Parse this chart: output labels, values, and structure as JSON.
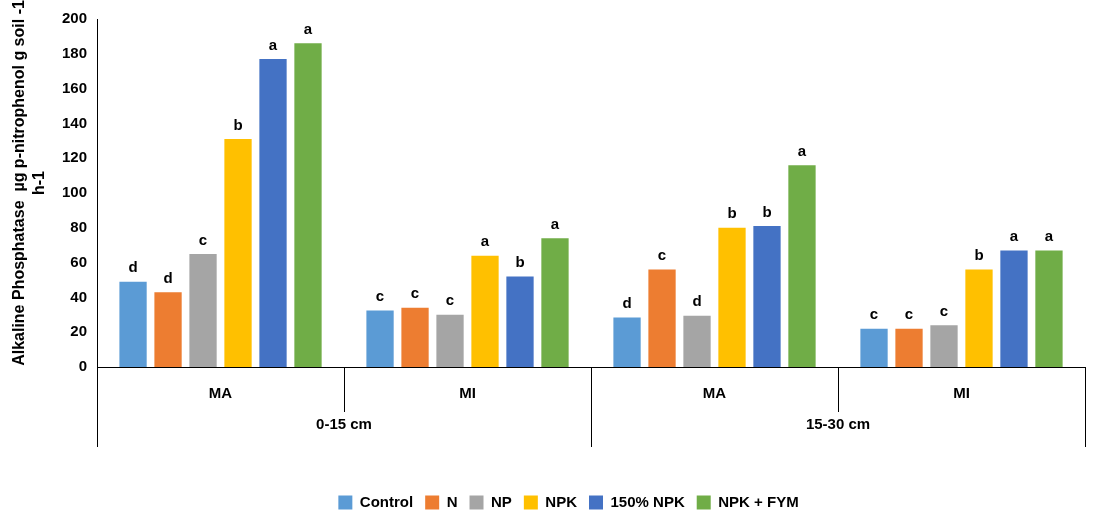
{
  "chart_data": {
    "type": "bar",
    "ylabel": "Alkaline Phosphatase  µg p-nitrophenol g soil -1 h-1",
    "categories": [
      "MA",
      "MI",
      "MA",
      "MI"
    ],
    "annotations": [
      "0-15 cm",
      "15-30 cm"
    ],
    "series": [
      {
        "name": "Control",
        "color": "#5b9bd5",
        "values": [
          49,
          32.5,
          28.5,
          22
        ],
        "value_labels": [
          "d",
          "c",
          "d",
          "c"
        ]
      },
      {
        "name": "N",
        "color": "#ed7d31",
        "values": [
          43,
          34,
          56,
          22
        ],
        "value_labels": [
          "d",
          "c",
          "c",
          "c"
        ]
      },
      {
        "name": "NP",
        "color": "#a5a5a5",
        "values": [
          65,
          30,
          29.5,
          24
        ],
        "value_labels": [
          "c",
          "c",
          "d",
          "c"
        ]
      },
      {
        "name": "NPK",
        "color": "#ffc000",
        "values": [
          131,
          64,
          80,
          56
        ],
        "value_labels": [
          "b",
          "a",
          "b",
          "b"
        ]
      },
      {
        "name": "150% NPK",
        "color": "#4472c4",
        "values": [
          177,
          52,
          81,
          67
        ],
        "value_labels": [
          "a",
          "b",
          "b",
          "a"
        ]
      },
      {
        "name": "NPK + FYM",
        "color": "#70ad47",
        "values": [
          186,
          74,
          116,
          67
        ],
        "value_labels": [
          "a",
          "a",
          "a",
          "a"
        ]
      }
    ],
    "ylim": [
      0,
      200
    ],
    "yticks": [
      0,
      20,
      40,
      60,
      80,
      100,
      120,
      140,
      160,
      180,
      200
    ],
    "grid": false,
    "legend": "bottom"
  }
}
